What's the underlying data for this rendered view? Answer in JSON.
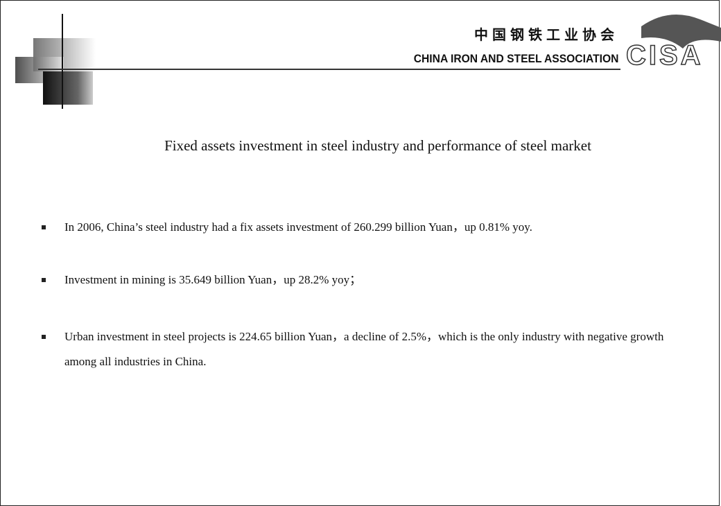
{
  "header": {
    "org_cn": "中国钢铁工业协会",
    "org_en": "CHINA IRON AND STEEL ASSOCIATION",
    "logo": "CISA"
  },
  "title": "Fixed assets investment in steel industry and performance of steel market",
  "bullets": [
    "In 2006, China’s steel industry had a fix assets investment of 260.299 billion Yuan，up 0.81%  yoy.",
    "Investment in mining is 35.649 billion Yuan，up 28.2% yoy；",
    "Urban investment in steel projects is 224.65 billion Yuan，a decline of 2.5%，which is the only industry with negative growth among all industries in China."
  ]
}
